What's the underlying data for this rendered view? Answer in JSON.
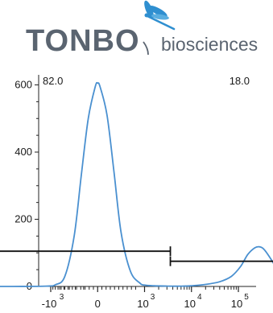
{
  "logo": {
    "brand": "TONBO",
    "tagline": "biosciences",
    "brand_color": "#5a6470",
    "accent_color": "#2f8fd0"
  },
  "chart_data": {
    "type": "line",
    "title": "",
    "xlabel": "",
    "ylabel": "",
    "x_scale": "biexponential",
    "ylim": [
      0,
      630
    ],
    "y_ticks": [
      0,
      200,
      400,
      600
    ],
    "x_ticks": [
      {
        "base": "-10",
        "exp": "3"
      },
      {
        "base": "0",
        "exp": ""
      },
      {
        "base": "10",
        "exp": "3"
      },
      {
        "base": "10",
        "exp": "4"
      },
      {
        "base": "10",
        "exp": "5"
      }
    ],
    "series": [
      {
        "color": "#4a90d0",
        "points": [
          [
            -2.3,
            0
          ],
          [
            -1.8,
            0
          ],
          [
            -1.1,
            1
          ],
          [
            -0.9,
            5
          ],
          [
            -0.7,
            30
          ],
          [
            -0.5,
            150
          ],
          [
            -0.35,
            330
          ],
          [
            -0.2,
            500
          ],
          [
            -0.05,
            595
          ],
          [
            0.0,
            605
          ],
          [
            0.05,
            595
          ],
          [
            0.2,
            510
          ],
          [
            0.35,
            340
          ],
          [
            0.5,
            160
          ],
          [
            0.7,
            45
          ],
          [
            0.9,
            10
          ],
          [
            1.0,
            4
          ],
          [
            1.2,
            2
          ],
          [
            1.5,
            1
          ],
          [
            1.8,
            1
          ],
          [
            2.0,
            2
          ],
          [
            2.3,
            6
          ],
          [
            2.6,
            14
          ],
          [
            2.85,
            30
          ],
          [
            3.05,
            60
          ],
          [
            3.2,
            95
          ],
          [
            3.35,
            115
          ],
          [
            3.45,
            118
          ],
          [
            3.55,
            110
          ],
          [
            3.7,
            80
          ],
          [
            3.85,
            45
          ],
          [
            4.0,
            20
          ],
          [
            4.2,
            7
          ],
          [
            4.4,
            2
          ],
          [
            4.6,
            1
          ],
          [
            4.8,
            0
          ],
          [
            5.0,
            0
          ],
          [
            5.3,
            0
          ]
        ]
      }
    ],
    "gates": [
      {
        "label": "82.0",
        "label_position": "top-left",
        "x_start": -2.3,
        "x_end": 1.55,
        "y": 105
      },
      {
        "label": "18.0",
        "label_position": "top-right",
        "x_start": 1.55,
        "x_end": 5.3,
        "y": 75
      }
    ]
  }
}
